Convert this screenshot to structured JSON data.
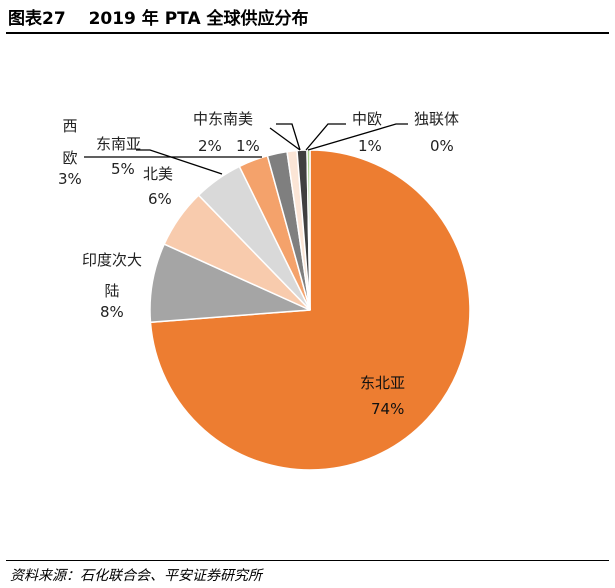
{
  "header": {
    "title": "图表27　 2019 年 PTA 全球供应分布"
  },
  "footer": {
    "source": "资料来源：石化联合会、平安证券研究所"
  },
  "chart_data": {
    "type": "pie",
    "title": "",
    "start": "top-clockwise",
    "slices": [
      {
        "label": "东北亚",
        "value": 74,
        "display": "74%",
        "color": "#ED7D31"
      },
      {
        "label": "印度次大陆",
        "value": 8,
        "display": "8%",
        "color": "#A5A5A5"
      },
      {
        "label": "北美",
        "value": 6,
        "display": "6%",
        "color": "#F8CBAD"
      },
      {
        "label": "东南亚",
        "value": 5,
        "display": "5%",
        "color": "#D9D9D9"
      },
      {
        "label": "西欧",
        "value": 3,
        "display": "3%",
        "color": "#F4A26B"
      },
      {
        "label": "中东",
        "value": 2,
        "display": "2%",
        "color": "#7F7F7F"
      },
      {
        "label": "南美",
        "value": 1,
        "display": "1%",
        "color": "#FBE5D6"
      },
      {
        "label": "中欧",
        "value": 1,
        "display": "1%",
        "color": "#404040"
      },
      {
        "label": "独联体",
        "value": 0,
        "display": "0%",
        "color": "#A9D18E"
      }
    ]
  }
}
